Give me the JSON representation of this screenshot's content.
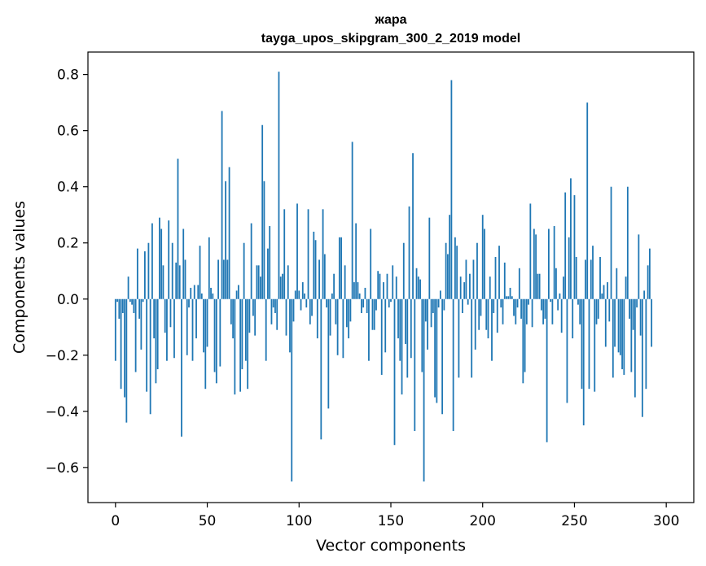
{
  "chart_data": {
    "type": "bar",
    "title": "жара",
    "subtitle": "tayga_upos_skipgram_300_2_2019 model",
    "xlabel": "Vector components",
    "ylabel": "Components values",
    "xlim": [
      -15,
      315
    ],
    "ylim": [
      -0.725,
      0.88
    ],
    "xticks": [
      0,
      50,
      100,
      150,
      200,
      250,
      300
    ],
    "yticks": [
      -0.6,
      -0.4,
      -0.2,
      0.0,
      0.2,
      0.4,
      0.6,
      0.8
    ],
    "xtick_labels": [
      "0",
      "50",
      "100",
      "150",
      "200",
      "250",
      "300"
    ],
    "ytick_labels": [
      "−0.6",
      "−0.4",
      "−0.2",
      "0.0",
      "0.2",
      "0.4",
      "0.6",
      "0.8"
    ],
    "grid": false,
    "bar_color": "#1f77b4",
    "values": [
      -0.22,
      -0.01,
      -0.07,
      -0.32,
      -0.05,
      -0.35,
      -0.44,
      0.08,
      -0.01,
      -0.02,
      -0.05,
      -0.26,
      0.18,
      -0.07,
      -0.18,
      -0.01,
      0.17,
      -0.33,
      0.2,
      -0.41,
      0.27,
      -0.14,
      -0.3,
      -0.25,
      0.29,
      0.25,
      0.12,
      -0.12,
      -0.22,
      0.28,
      -0.1,
      0.2,
      -0.21,
      0.13,
      0.5,
      0.12,
      -0.49,
      0.25,
      0.14,
      -0.2,
      -0.03,
      0.04,
      -0.22,
      0.05,
      -0.14,
      0.05,
      0.19,
      0.02,
      -0.19,
      -0.32,
      -0.17,
      0.22,
      0.04,
      0.02,
      -0.26,
      -0.3,
      0.14,
      -0.24,
      0.67,
      0.14,
      0.42,
      0.14,
      0.47,
      -0.09,
      -0.14,
      -0.34,
      0.03,
      0.05,
      -0.33,
      -0.25,
      0.2,
      -0.22,
      -0.32,
      -0.12,
      0.27,
      -0.06,
      -0.13,
      0.12,
      0.12,
      0.08,
      0.62,
      0.42,
      -0.22,
      0.18,
      0.26,
      -0.09,
      -0.03,
      -0.05,
      -0.11,
      0.81,
      0.08,
      0.09,
      0.32,
      -0.13,
      0.12,
      -0.19,
      -0.65,
      -0.08,
      0.03,
      0.34,
      0.03,
      -0.04,
      0.06,
      0.02,
      -0.03,
      0.32,
      -0.09,
      -0.06,
      0.24,
      0.21,
      -0.14,
      0.14,
      -0.5,
      0.32,
      0.16,
      -0.03,
      -0.39,
      -0.13,
      0.02,
      0.09,
      -0.09,
      -0.2,
      0.22,
      0.22,
      -0.21,
      0.12,
      -0.1,
      -0.14,
      -0.08,
      0.56,
      0.06,
      0.27,
      0.06,
      0.02,
      -0.05,
      -0.03,
      0.04,
      -0.05,
      -0.22,
      0.25,
      -0.11,
      -0.11,
      -0.04,
      0.1,
      0.09,
      -0.27,
      0.06,
      -0.19,
      0.09,
      -0.03,
      -0.01,
      0.12,
      -0.52,
      0.08,
      -0.14,
      -0.22,
      -0.34,
      0.2,
      -0.16,
      -0.28,
      0.33,
      -0.21,
      0.52,
      -0.47,
      0.11,
      0.08,
      0.07,
      -0.26,
      -0.65,
      -0.08,
      -0.18,
      0.29,
      -0.1,
      -0.05,
      -0.35,
      -0.37,
      -0.03,
      0.03,
      -0.41,
      -0.04,
      0.2,
      0.16,
      0.3,
      0.78,
      -0.47,
      0.22,
      0.19,
      -0.28,
      0.08,
      -0.05,
      0.06,
      0.14,
      -0.02,
      0.09,
      -0.28,
      0.14,
      -0.18,
      0.2,
      -0.11,
      -0.06,
      0.3,
      0.25,
      -0.11,
      -0.14,
      0.08,
      -0.22,
      -0.05,
      0.15,
      -0.12,
      0.19,
      -0.03,
      -0.09,
      0.13,
      0.01,
      0.01,
      0.04,
      0.01,
      -0.06,
      -0.09,
      -0.03,
      0.11,
      -0.07,
      -0.3,
      -0.26,
      -0.09,
      -0.02,
      0.34,
      -0.1,
      0.25,
      0.23,
      0.09,
      0.09,
      -0.04,
      -0.09,
      -0.07,
      -0.51,
      0.25,
      -0.01,
      -0.09,
      0.26,
      0.11,
      -0.04,
      0.02,
      -0.12,
      0.08,
      0.38,
      -0.37,
      0.22,
      0.43,
      -0.14,
      0.37,
      0.15,
      -0.02,
      -0.09,
      -0.32,
      -0.45,
      0.14,
      0.7,
      -0.32,
      0.14,
      0.19,
      -0.33,
      -0.09,
      -0.07,
      0.15,
      0.02,
      0.05,
      -0.17,
      0.06,
      -0.08,
      0.4,
      -0.28,
      -0.17,
      0.11,
      -0.19,
      -0.2,
      -0.25,
      -0.27,
      0.08,
      0.4,
      -0.07,
      -0.26,
      -0.11,
      -0.35,
      -0.03,
      0.23,
      -0.13,
      -0.42,
      0.03,
      -0.32,
      0.12,
      0.18,
      -0.17
    ]
  }
}
